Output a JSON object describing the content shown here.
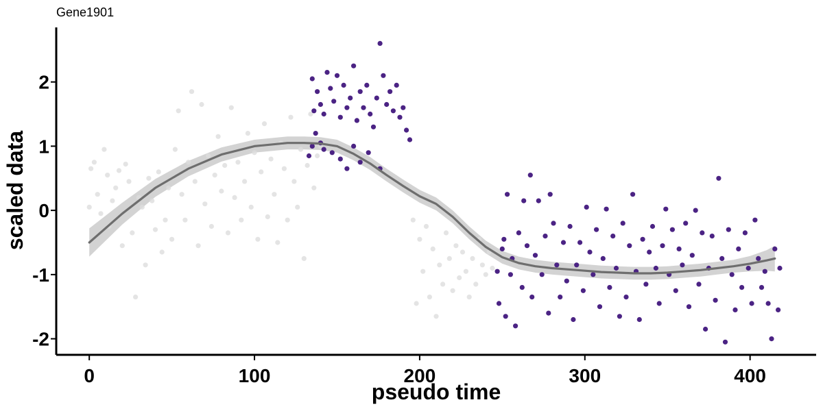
{
  "chart_data": {
    "type": "scatter",
    "title": "Gene1901",
    "xlabel": "pseudo time",
    "ylabel": "scaled data",
    "xlim": [
      -20,
      440
    ],
    "ylim": [
      -2.25,
      2.85
    ],
    "x_ticks": [
      0,
      100,
      200,
      300,
      400
    ],
    "y_ticks": [
      -2,
      -1,
      0,
      1,
      2
    ],
    "x_tick_labels": [
      "0",
      "100",
      "200",
      "300",
      "400"
    ],
    "y_tick_labels": [
      "-2",
      "-1",
      "0",
      "1",
      "2"
    ],
    "grid": false,
    "legend": "none",
    "colors": {
      "highlight": "#4B2384",
      "background_points": "#DDDDDD",
      "smooth_line": "#6E6E6E",
      "confidence_band": "#C8C8C8"
    },
    "series": [
      {
        "role": "background",
        "points": [
          [
            0,
            0.05
          ],
          [
            1,
            0.65
          ],
          [
            3,
            0.75
          ],
          [
            5,
            0.25
          ],
          [
            7,
            -0.05
          ],
          [
            9,
            0.95
          ],
          [
            11,
            0.55
          ],
          [
            12,
            -0.25
          ],
          [
            14,
            0.15
          ],
          [
            16,
            0.35
          ],
          [
            18,
            0.62
          ],
          [
            20,
            -0.55
          ],
          [
            22,
            0.72
          ],
          [
            24,
            0.45
          ],
          [
            26,
            -0.35
          ],
          [
            28,
            -1.35
          ],
          [
            30,
            0.2
          ],
          [
            32,
            0.05
          ],
          [
            34,
            -0.85
          ],
          [
            36,
            0.5
          ],
          [
            38,
            0.15
          ],
          [
            40,
            -0.3
          ],
          [
            42,
            0.6
          ],
          [
            44,
            -0.65
          ],
          [
            46,
            -0.15
          ],
          [
            48,
            0.35
          ],
          [
            50,
            -0.45
          ],
          [
            52,
            0.95
          ],
          [
            54,
            1.55
          ],
          [
            56,
            0.25
          ],
          [
            58,
            -0.15
          ],
          [
            60,
            0.75
          ],
          [
            62,
            1.85
          ],
          [
            64,
            0.45
          ],
          [
            66,
            -0.55
          ],
          [
            68,
            1.65
          ],
          [
            70,
            0.1
          ],
          [
            72,
            0.85
          ],
          [
            74,
            -0.25
          ],
          [
            76,
            0.55
          ],
          [
            78,
            1.15
          ],
          [
            80,
            0.3
          ],
          [
            82,
            0.7
          ],
          [
            84,
            -0.35
          ],
          [
            86,
            1.6
          ],
          [
            88,
            0.2
          ],
          [
            90,
            0.75
          ],
          [
            92,
            -0.15
          ],
          [
            94,
            0.45
          ],
          [
            96,
            1.2
          ],
          [
            98,
            0.05
          ],
          [
            100,
            0.9
          ],
          [
            102,
            -0.45
          ],
          [
            104,
            0.6
          ],
          [
            106,
            1.35
          ],
          [
            108,
            -0.1
          ],
          [
            110,
            0.8
          ],
          [
            112,
            0.25
          ],
          [
            114,
            -0.5
          ],
          [
            116,
            1.05
          ],
          [
            118,
            0.65
          ],
          [
            120,
            -0.15
          ],
          [
            122,
            1.45
          ],
          [
            124,
            0.45
          ],
          [
            126,
            0.05
          ],
          [
            128,
            0.95
          ],
          [
            130,
            -0.75
          ],
          [
            132,
            0.7
          ],
          [
            134,
            1.5
          ],
          [
            136,
            0.35
          ],
          [
            138,
            0.85
          ],
          [
            140,
            1.0
          ],
          [
            196,
            -0.15
          ],
          [
            198,
            -1.45
          ],
          [
            200,
            -0.45
          ],
          [
            202,
            -0.95
          ],
          [
            204,
            -0.25
          ],
          [
            206,
            -1.35
          ],
          [
            208,
            -0.6
          ],
          [
            210,
            -1.65
          ],
          [
            212,
            -0.85
          ],
          [
            214,
            -1.15
          ],
          [
            216,
            -0.35
          ],
          [
            218,
            -0.75
          ],
          [
            220,
            -1.25
          ],
          [
            222,
            -0.55
          ],
          [
            224,
            -1.05
          ],
          [
            226,
            -0.65
          ],
          [
            228,
            -0.95
          ],
          [
            230,
            -1.35
          ],
          [
            232,
            -0.75
          ],
          [
            234,
            -1.15
          ],
          [
            236,
            -0.45
          ],
          [
            238,
            -0.85
          ],
          [
            240,
            -1.0
          ],
          [
            242,
            -0.65
          ],
          [
            244,
            -0.9
          ]
        ]
      },
      {
        "role": "highlight",
        "points": [
          [
            135,
            2.05
          ],
          [
            136,
            1.55
          ],
          [
            138,
            1.85
          ],
          [
            140,
            1.65
          ],
          [
            142,
            1.5
          ],
          [
            144,
            2.15
          ],
          [
            146,
            1.9
          ],
          [
            148,
            1.7
          ],
          [
            150,
            2.1
          ],
          [
            152,
            1.45
          ],
          [
            154,
            1.95
          ],
          [
            156,
            1.6
          ],
          [
            158,
            1.75
          ],
          [
            160,
            2.25
          ],
          [
            162,
            1.4
          ],
          [
            164,
            1.85
          ],
          [
            166,
            1.6
          ],
          [
            168,
            1.95
          ],
          [
            170,
            1.5
          ],
          [
            172,
            1.3
          ],
          [
            174,
            1.75
          ],
          [
            176,
            2.6
          ],
          [
            178,
            2.1
          ],
          [
            180,
            1.65
          ],
          [
            182,
            1.85
          ],
          [
            184,
            1.55
          ],
          [
            186,
            1.95
          ],
          [
            188,
            1.45
          ],
          [
            190,
            1.6
          ],
          [
            192,
            1.25
          ],
          [
            194,
            1.1
          ],
          [
            133,
            0.85
          ],
          [
            135,
            1.0
          ],
          [
            137,
            1.2
          ],
          [
            140,
            1.05
          ],
          [
            142,
            0.95
          ],
          [
            147,
            0.9
          ],
          [
            152,
            0.8
          ],
          [
            156,
            0.65
          ],
          [
            160,
            1.0
          ],
          [
            164,
            0.75
          ],
          [
            169,
            0.9
          ],
          [
            176,
            0.65
          ],
          [
            247,
            -0.95
          ],
          [
            248,
            -1.45
          ],
          [
            250,
            -0.6
          ],
          [
            251,
            -0.45
          ],
          [
            252,
            -1.65
          ],
          [
            253,
            0.25
          ],
          [
            255,
            -1.0
          ],
          [
            256,
            -0.75
          ],
          [
            258,
            -1.8
          ],
          [
            260,
            -0.35
          ],
          [
            262,
            -1.2
          ],
          [
            263,
            0.15
          ],
          [
            265,
            -0.55
          ],
          [
            267,
            0.55
          ],
          [
            268,
            -1.35
          ],
          [
            270,
            -0.7
          ],
          [
            272,
            0.15
          ],
          [
            274,
            -1.0
          ],
          [
            276,
            -0.4
          ],
          [
            278,
            -1.6
          ],
          [
            279,
            0.25
          ],
          [
            281,
            -0.2
          ],
          [
            283,
            -0.85
          ],
          [
            285,
            -1.35
          ],
          [
            287,
            -0.5
          ],
          [
            289,
            -1.1
          ],
          [
            291,
            -0.25
          ],
          [
            293,
            -1.7
          ],
          [
            295,
            -0.85
          ],
          [
            297,
            -0.5
          ],
          [
            299,
            -1.25
          ],
          [
            301,
            0.05
          ],
          [
            303,
            -0.65
          ],
          [
            305,
            -1.0
          ],
          [
            307,
            -0.3
          ],
          [
            309,
            -1.5
          ],
          [
            311,
            -0.75
          ],
          [
            313,
            0.02
          ],
          [
            315,
            -1.2
          ],
          [
            317,
            -0.4
          ],
          [
            319,
            -0.9
          ],
          [
            321,
            -1.65
          ],
          [
            323,
            -0.2
          ],
          [
            325,
            -1.35
          ],
          [
            327,
            -0.55
          ],
          [
            329,
            0.25
          ],
          [
            331,
            -0.95
          ],
          [
            333,
            -1.7
          ],
          [
            335,
            -0.45
          ],
          [
            337,
            -1.15
          ],
          [
            339,
            -0.65
          ],
          [
            341,
            -0.25
          ],
          [
            343,
            -0.9
          ],
          [
            345,
            -1.45
          ],
          [
            347,
            -0.55
          ],
          [
            349,
            0.02
          ],
          [
            351,
            -1.0
          ],
          [
            353,
            -0.3
          ],
          [
            355,
            -1.25
          ],
          [
            357,
            -0.6
          ],
          [
            359,
            -0.85
          ],
          [
            361,
            -0.2
          ],
          [
            363,
            -1.5
          ],
          [
            365,
            -0.7
          ],
          [
            367,
            0.0
          ],
          [
            369,
            -1.15
          ],
          [
            371,
            -0.35
          ],
          [
            373,
            -1.85
          ],
          [
            375,
            -0.9
          ],
          [
            377,
            -0.4
          ],
          [
            379,
            -1.4
          ],
          [
            381,
            0.5
          ],
          [
            383,
            -0.75
          ],
          [
            385,
            -2.05
          ],
          [
            387,
            -0.3
          ],
          [
            389,
            -1.0
          ],
          [
            391,
            -1.55
          ],
          [
            393,
            -0.6
          ],
          [
            395,
            -1.2
          ],
          [
            397,
            -0.35
          ],
          [
            399,
            -0.9
          ],
          [
            401,
            -1.45
          ],
          [
            403,
            -0.15
          ],
          [
            405,
            -0.75
          ],
          [
            407,
            -1.2
          ],
          [
            409,
            -0.95
          ],
          [
            411,
            -1.45
          ],
          [
            413,
            -2.0
          ],
          [
            415,
            -0.6
          ],
          [
            417,
            -1.55
          ],
          [
            418,
            -0.9
          ]
        ]
      }
    ],
    "smooth_curve": {
      "x": [
        0,
        20,
        40,
        60,
        80,
        100,
        120,
        130,
        140,
        150,
        160,
        170,
        180,
        190,
        200,
        210,
        220,
        230,
        240,
        250,
        260,
        270,
        280,
        290,
        300,
        310,
        320,
        330,
        340,
        350,
        360,
        370,
        380,
        390,
        400,
        410,
        415
      ],
      "y": [
        -0.5,
        -0.05,
        0.35,
        0.65,
        0.87,
        1.0,
        1.05,
        1.05,
        1.04,
        1.0,
        0.88,
        0.73,
        0.55,
        0.38,
        0.22,
        0.1,
        -0.1,
        -0.35,
        -0.57,
        -0.73,
        -0.82,
        -0.87,
        -0.9,
        -0.92,
        -0.94,
        -0.96,
        -0.97,
        -0.98,
        -0.98,
        -0.97,
        -0.95,
        -0.93,
        -0.9,
        -0.87,
        -0.83,
        -0.78,
        -0.75
      ],
      "band": [
        0.22,
        0.17,
        0.14,
        0.12,
        0.11,
        0.1,
        0.1,
        0.1,
        0.1,
        0.1,
        0.1,
        0.1,
        0.1,
        0.1,
        0.1,
        0.1,
        0.1,
        0.1,
        0.1,
        0.1,
        0.1,
        0.1,
        0.1,
        0.1,
        0.1,
        0.1,
        0.1,
        0.1,
        0.1,
        0.1,
        0.1,
        0.1,
        0.1,
        0.1,
        0.12,
        0.16,
        0.2
      ]
    }
  }
}
